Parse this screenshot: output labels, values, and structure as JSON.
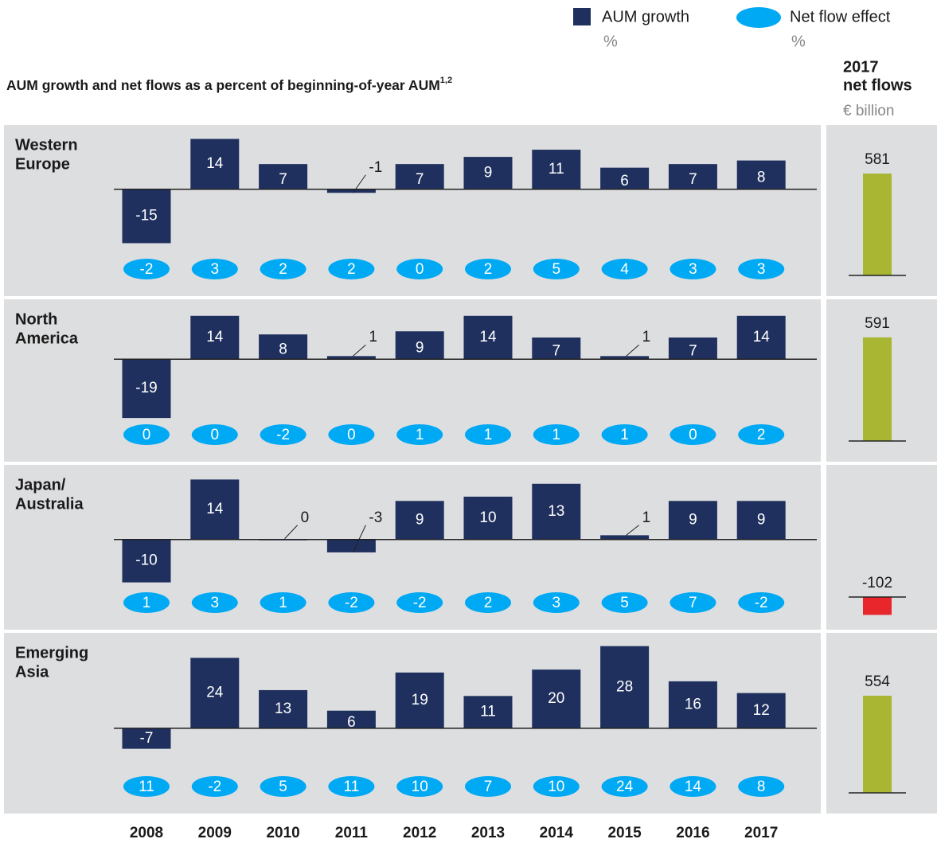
{
  "chart_data": {
    "type": "bar",
    "title": "AUM growth and net flows as a percent of beginning-of-year AUM",
    "title_note": "1,2",
    "categories": [
      "2008",
      "2009",
      "2010",
      "2011",
      "2012",
      "2013",
      "2014",
      "2015",
      "2016",
      "2017"
    ],
    "series": [
      {
        "name": "AUM growth",
        "unit": "%",
        "color": "#1f305e"
      },
      {
        "name": "Net flow effect",
        "unit": "%",
        "color": "#00a9f4"
      }
    ],
    "side": {
      "title": [
        "2017",
        "net flows"
      ],
      "unit": "€ billion",
      "ylim": [
        -120,
        620
      ],
      "positive_color": "#a8b634",
      "negative_color": "#e8262c"
    },
    "panels": [
      {
        "name": [
          "Western",
          "Europe"
        ],
        "ylim": [
          -16,
          15
        ],
        "series": [
          {
            "values": [
              -15,
              14,
              7,
              -1,
              7,
              9,
              11,
              6,
              7,
              8
            ]
          },
          {
            "values": [
              -2,
              3,
              2,
              2,
              0,
              2,
              5,
              4,
              3,
              3
            ]
          }
        ],
        "net_flows_2017": 581
      },
      {
        "name": [
          "North",
          "America"
        ],
        "ylim": [
          -20,
          16
        ],
        "series": [
          {
            "values": [
              -19,
              14,
              8,
              1,
              9,
              14,
              7,
              1,
              7,
              14
            ]
          },
          {
            "values": [
              0,
              0,
              -2,
              0,
              1,
              1,
              1,
              1,
              0,
              2
            ]
          }
        ],
        "net_flows_2017": 591
      },
      {
        "name": [
          "Japan/",
          "Australia"
        ],
        "ylim": [
          -11,
          15
        ],
        "series": [
          {
            "values": [
              -10,
              14,
              0,
              -3,
              9,
              10,
              13,
              1,
              9,
              9
            ]
          },
          {
            "values": [
              1,
              3,
              1,
              -2,
              -2,
              2,
              3,
              5,
              7,
              -2
            ]
          }
        ],
        "net_flows_2017": -102
      },
      {
        "name": [
          "Emerging",
          "Asia"
        ],
        "ylim": [
          -9,
          29
        ],
        "series": [
          {
            "values": [
              -7,
              24,
              13,
              6,
              19,
              11,
              20,
              28,
              16,
              12
            ]
          },
          {
            "values": [
              11,
              -2,
              5,
              11,
              10,
              7,
              10,
              24,
              14,
              8
            ]
          }
        ],
        "net_flows_2017": 554
      }
    ]
  }
}
